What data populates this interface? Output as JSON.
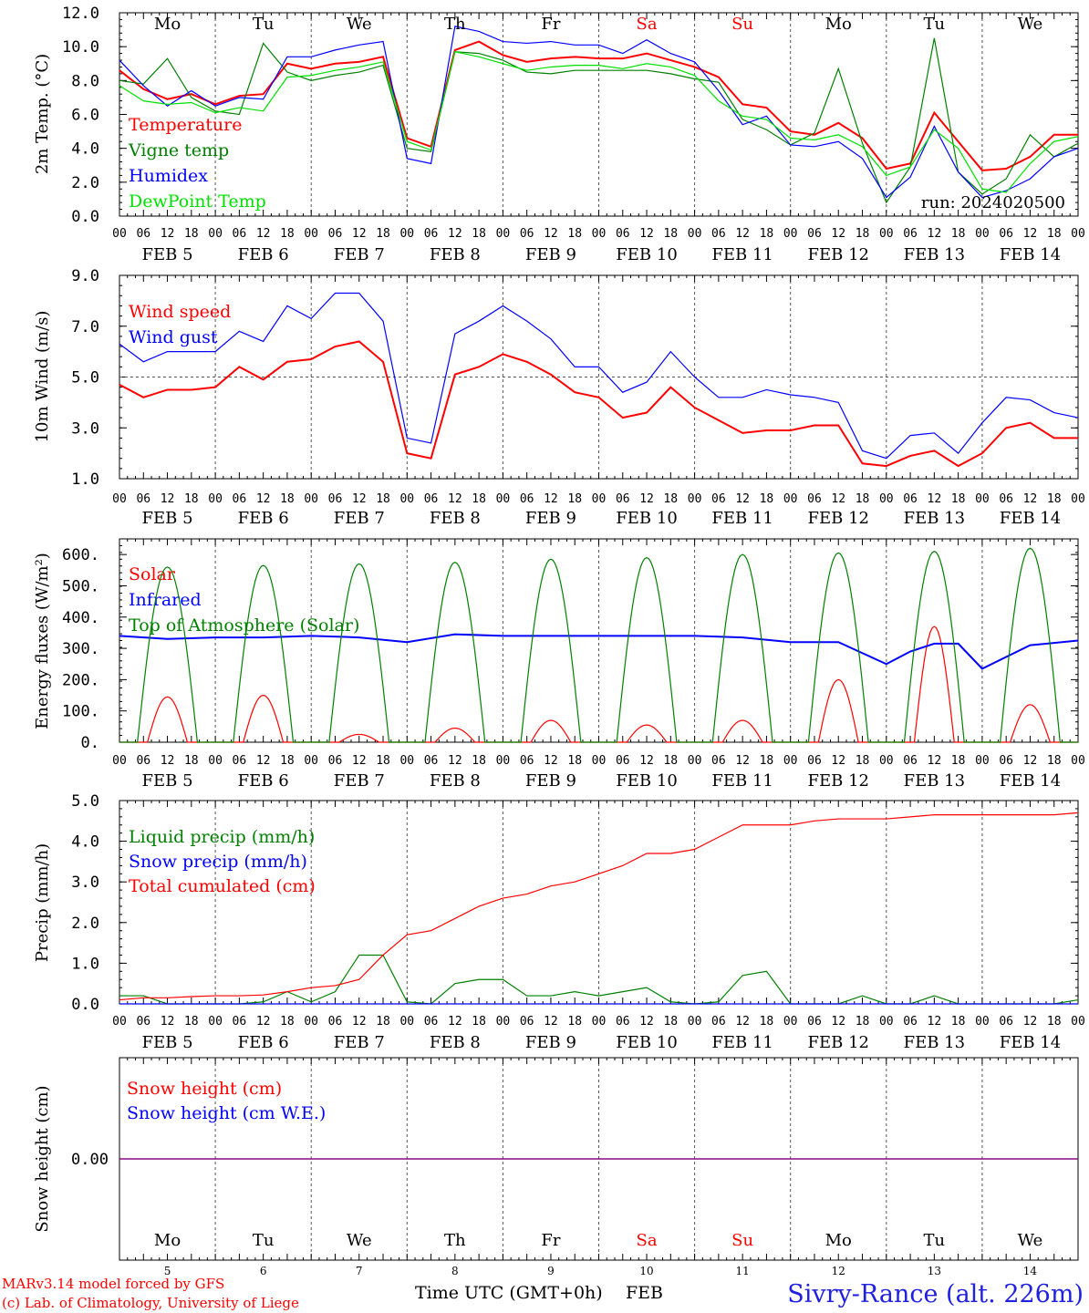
{
  "colors": {
    "red": "#ff0000",
    "green": "#008000",
    "blue": "#0000ff",
    "lime": "#00e000",
    "purple": "#800080",
    "gray": "#555555"
  },
  "time_axis": {
    "hour_ticks": [
      "00",
      "06",
      "12",
      "18"
    ],
    "end_tick": "00",
    "day_labels": [
      "FEB  5",
      "FEB  6",
      "FEB  7",
      "FEB  8",
      "FEB  9",
      "FEB 10",
      "FEB 11",
      "FEB 12",
      "FEB 13",
      "FEB 14"
    ],
    "weekdays": [
      "Mo",
      "Tu",
      "We",
      "Th",
      "Fr",
      "Sa",
      "Su",
      "Mo",
      "Tu",
      "We"
    ],
    "weekday_colors": [
      "#000000",
      "#000000",
      "#000000",
      "#000000",
      "#000000",
      "#ff0000",
      "#ff0000",
      "#000000",
      "#000000",
      "#000000"
    ],
    "day_numbers": [
      "5",
      "6",
      "7",
      "8",
      "9",
      "10",
      "11",
      "12",
      "13",
      "14"
    ],
    "xlabel": "Time UTC (GMT+0h)",
    "month": "FEB"
  },
  "footer": {
    "credit1": "MARv3.14 model forced by GFS",
    "credit2": "(c) Lab. of Climatology, University of Liege",
    "station": "Sivry-Rance (alt. 226m)"
  },
  "chart_data": [
    {
      "type": "line",
      "ylabel": "2m Temp. (°C)",
      "ylim": [
        0,
        12
      ],
      "yticks": [
        "0.0",
        "2.0",
        "4.0",
        "6.0",
        "8.0",
        "10.0",
        "12.0"
      ],
      "annotation": "run: 2024020500",
      "x_hours": [
        0,
        6,
        12,
        18,
        24,
        30,
        36,
        42,
        48,
        54,
        60,
        66,
        72,
        78,
        84,
        90,
        96,
        102,
        108,
        114,
        120,
        126,
        132,
        138,
        144,
        150,
        156,
        162,
        168,
        174,
        180,
        186,
        192,
        198,
        204,
        210,
        216,
        222,
        228,
        234,
        240
      ],
      "series": [
        {
          "name": "Temperature",
          "color": "#ff0000",
          "values": [
            8.6,
            7.5,
            6.9,
            7.2,
            6.6,
            7.1,
            7.2,
            9.0,
            8.7,
            9.0,
            9.1,
            9.4,
            4.6,
            4.1,
            9.8,
            10.3,
            9.5,
            9.1,
            9.3,
            9.4,
            9.3,
            9.3,
            9.6,
            9.2,
            8.8,
            8.2,
            6.6,
            6.4,
            5.0,
            4.8,
            5.5,
            4.6,
            2.8,
            3.1,
            6.1,
            4.4,
            2.7,
            2.8,
            3.5,
            4.8,
            4.8
          ]
        },
        {
          "name": "Vigne temp",
          "color": "#008000",
          "values": [
            8.0,
            7.8,
            9.3,
            7.0,
            6.2,
            6.0,
            10.2,
            8.5,
            8.0,
            8.3,
            8.5,
            8.9,
            4.0,
            3.8,
            9.7,
            9.6,
            9.2,
            8.5,
            8.4,
            8.6,
            8.6,
            8.6,
            8.6,
            8.4,
            8.1,
            7.9,
            5.7,
            5.1,
            4.2,
            4.9,
            8.7,
            4.3,
            0.8,
            2.9,
            10.5,
            2.6,
            1.3,
            2.2,
            4.8,
            3.5,
            4.3
          ]
        },
        {
          "name": "Humidex",
          "color": "#0000ff",
          "values": [
            9.2,
            7.7,
            6.5,
            7.4,
            6.5,
            7.0,
            6.9,
            9.4,
            9.4,
            9.8,
            10.1,
            10.3,
            3.4,
            3.1,
            11.2,
            10.9,
            10.3,
            10.2,
            10.3,
            10.1,
            10.1,
            9.6,
            10.4,
            9.6,
            9.1,
            7.4,
            5.4,
            5.9,
            4.2,
            4.1,
            4.4,
            3.4,
            1.1,
            2.3,
            5.3,
            2.6,
            1.1,
            1.5,
            2.2,
            3.5,
            4.0
          ]
        },
        {
          "name": "DewPoint Temp",
          "color": "#00e000",
          "values": [
            7.7,
            6.8,
            6.6,
            6.7,
            6.1,
            6.4,
            6.2,
            8.2,
            8.3,
            8.6,
            8.8,
            9.1,
            4.4,
            3.9,
            9.7,
            9.4,
            9.0,
            8.6,
            8.8,
            8.9,
            8.9,
            8.7,
            9.0,
            8.8,
            8.3,
            6.8,
            5.9,
            5.7,
            4.6,
            4.5,
            4.8,
            4.1,
            2.4,
            2.9,
            5.1,
            4.0,
            1.6,
            1.4,
            3.1,
            4.4,
            4.7
          ]
        }
      ]
    },
    {
      "type": "line",
      "ylabel": "10m Wind (m/s)",
      "ylim": [
        1,
        9
      ],
      "yticks": [
        "1.0",
        "3.0",
        "5.0",
        "7.0",
        "9.0"
      ],
      "reference_line": 5.0,
      "x_hours": [
        0,
        6,
        12,
        18,
        24,
        30,
        36,
        42,
        48,
        54,
        60,
        66,
        72,
        78,
        84,
        90,
        96,
        102,
        108,
        114,
        120,
        126,
        132,
        138,
        144,
        150,
        156,
        162,
        168,
        174,
        180,
        186,
        192,
        198,
        204,
        210,
        216,
        222,
        228,
        234,
        240
      ],
      "series": [
        {
          "name": "Wind speed",
          "color": "#ff0000",
          "values": [
            4.7,
            4.2,
            4.5,
            4.5,
            4.6,
            5.4,
            4.9,
            5.6,
            5.7,
            6.2,
            6.4,
            5.6,
            2.0,
            1.8,
            5.1,
            5.4,
            5.9,
            5.6,
            5.1,
            4.4,
            4.2,
            3.4,
            3.6,
            4.6,
            3.8,
            3.3,
            2.8,
            2.9,
            2.9,
            3.1,
            3.1,
            1.6,
            1.5,
            1.9,
            2.1,
            1.5,
            2.0,
            3.0,
            3.2,
            2.6,
            2.6
          ]
        },
        {
          "name": "Wind gust",
          "color": "#0000ff",
          "values": [
            6.3,
            5.6,
            6.0,
            6.0,
            6.0,
            6.8,
            6.4,
            7.8,
            7.3,
            8.3,
            8.3,
            7.2,
            2.6,
            2.4,
            6.7,
            7.2,
            7.8,
            7.2,
            6.5,
            5.4,
            5.4,
            4.4,
            4.8,
            6.0,
            5.0,
            4.2,
            4.2,
            4.5,
            4.3,
            4.2,
            4.0,
            2.1,
            1.8,
            2.7,
            2.8,
            2.0,
            3.2,
            4.2,
            4.1,
            3.6,
            3.4
          ]
        }
      ]
    },
    {
      "type": "line",
      "ylabel": "Energy fluxes (W/m²)",
      "ylim": [
        0,
        650
      ],
      "yticks": [
        "0.",
        "100.",
        "200.",
        "300.",
        "400.",
        "500.",
        "600."
      ],
      "series": [
        {
          "name": "Solar",
          "color": "#ff0000",
          "daily_peak": [
            145,
            150,
            25,
            45,
            70,
            55,
            70,
            200,
            370,
            120
          ],
          "peak_hour": 12,
          "half_width_hours": 5
        },
        {
          "name": "Infrared",
          "color": "#0000ff",
          "x_hours": [
            0,
            12,
            24,
            36,
            48,
            60,
            72,
            84,
            96,
            108,
            120,
            132,
            144,
            156,
            168,
            180,
            192,
            198,
            204,
            210,
            216,
            228,
            240
          ],
          "values": [
            340,
            330,
            335,
            335,
            340,
            335,
            320,
            345,
            340,
            340,
            340,
            340,
            340,
            335,
            320,
            320,
            250,
            290,
            315,
            315,
            235,
            310,
            325
          ]
        },
        {
          "name": "Top of Atmosphere (Solar)",
          "color": "#008000",
          "daily_peak": [
            560,
            565,
            570,
            575,
            585,
            590,
            600,
            605,
            610,
            620
          ],
          "peak_hour": 12,
          "half_width_hours": 7.5
        }
      ]
    },
    {
      "type": "line",
      "ylabel": "Precip (mm/h)",
      "ylim": [
        0,
        5
      ],
      "yticks": [
        "0.0",
        "1.0",
        "2.0",
        "3.0",
        "4.0",
        "5.0"
      ],
      "x_hours": [
        0,
        6,
        12,
        18,
        24,
        30,
        36,
        42,
        48,
        54,
        60,
        66,
        72,
        78,
        84,
        90,
        96,
        102,
        108,
        114,
        120,
        126,
        132,
        138,
        144,
        150,
        156,
        162,
        168,
        174,
        180,
        186,
        192,
        198,
        204,
        210,
        216,
        222,
        228,
        234,
        240
      ],
      "series": [
        {
          "name": "Liquid precip (mm/h)",
          "color": "#008000",
          "values": [
            0.2,
            0.2,
            0,
            0,
            0,
            0,
            0.05,
            0.3,
            0.05,
            0.3,
            1.2,
            1.2,
            0.05,
            0,
            0.5,
            0.6,
            0.6,
            0.2,
            0.2,
            0.3,
            0.2,
            0.3,
            0.4,
            0.05,
            0,
            0.05,
            0.7,
            0.8,
            0,
            0,
            0,
            0.2,
            0,
            0,
            0.2,
            0,
            0,
            0,
            0,
            0,
            0.1
          ]
        },
        {
          "name": "Snow precip (mm/h)",
          "color": "#0000ff",
          "values": [
            0,
            0,
            0,
            0,
            0,
            0,
            0,
            0,
            0,
            0,
            0,
            0,
            0,
            0,
            0,
            0,
            0,
            0,
            0,
            0,
            0,
            0,
            0,
            0,
            0,
            0,
            0,
            0,
            0,
            0,
            0,
            0,
            0,
            0,
            0,
            0,
            0,
            0,
            0,
            0,
            0
          ]
        },
        {
          "name": "Total cumulated (cm)",
          "color": "#ff0000",
          "values": [
            0.1,
            0.15,
            0.15,
            0.18,
            0.2,
            0.2,
            0.22,
            0.3,
            0.4,
            0.45,
            0.6,
            1.2,
            1.7,
            1.8,
            2.1,
            2.4,
            2.6,
            2.7,
            2.9,
            3.0,
            3.2,
            3.4,
            3.7,
            3.7,
            3.8,
            4.1,
            4.4,
            4.4,
            4.4,
            4.5,
            4.55,
            4.55,
            4.55,
            4.6,
            4.65,
            4.65,
            4.65,
            4.65,
            4.65,
            4.65,
            4.7
          ]
        }
      ]
    },
    {
      "type": "line",
      "ylabel": "Snow height (cm)",
      "ylim": [
        -1,
        1
      ],
      "yticks": [
        "0.00"
      ],
      "series": [
        {
          "name": "Snow height (cm)",
          "color": "#ff0000",
          "values": [
            0,
            0
          ]
        },
        {
          "name": "Snow height (cm W.E.)",
          "color": "#0000ff",
          "values": [
            0,
            0
          ]
        }
      ],
      "line_color": "#800080"
    }
  ]
}
